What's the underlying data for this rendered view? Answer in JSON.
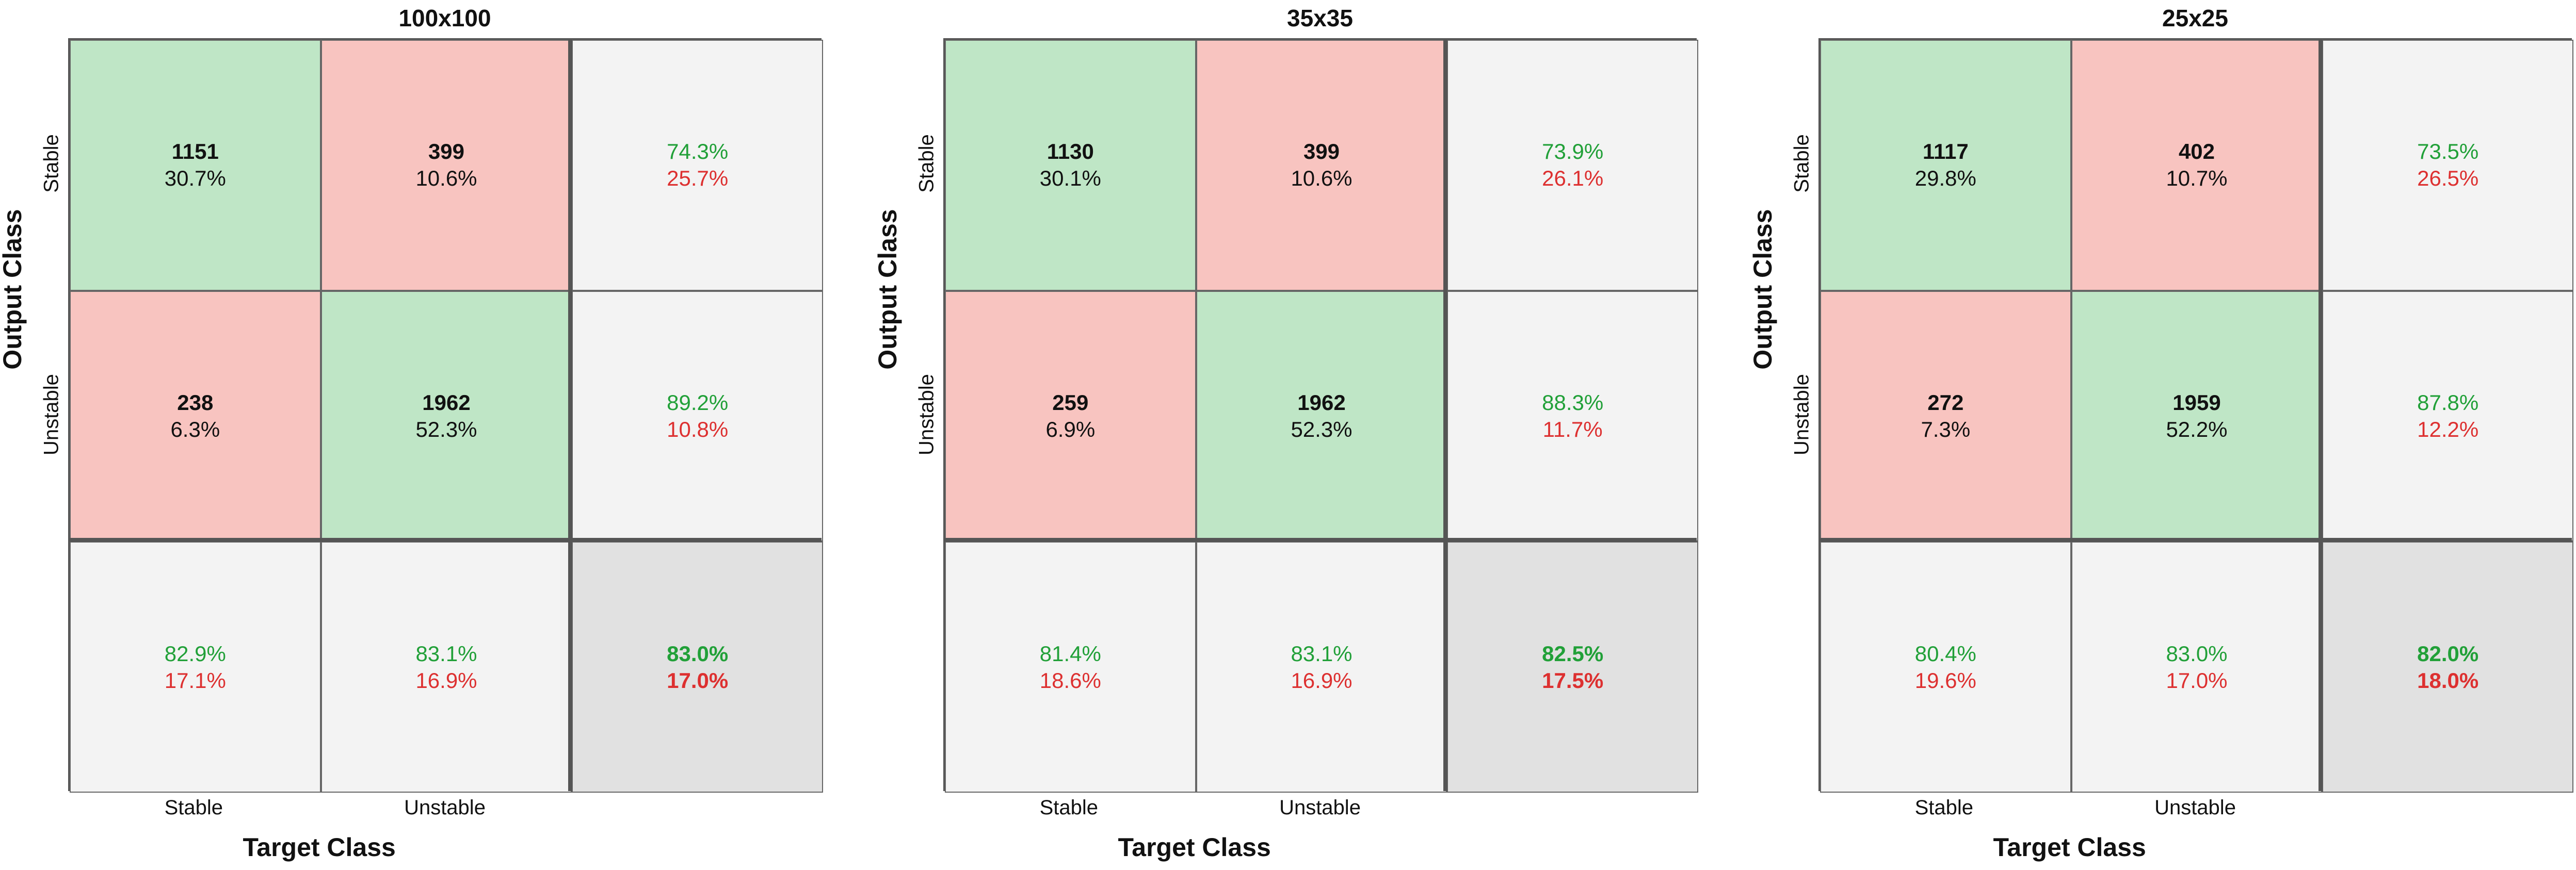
{
  "chart_data": [
    {
      "type": "table",
      "title": "100x100",
      "ylabel": "Output Class",
      "xlabel": "Target Class",
      "row_labels": [
        "Stable",
        "Unstable"
      ],
      "col_labels": [
        "Stable",
        "Unstable"
      ],
      "cells": [
        [
          {
            "count": "1151",
            "pct": "30.7%"
          },
          {
            "count": "399",
            "pct": "10.6%"
          }
        ],
        [
          {
            "count": "238",
            "pct": "6.3%"
          },
          {
            "count": "1962",
            "pct": "52.3%"
          }
        ]
      ],
      "row_summary": [
        [
          "74.3%",
          "25.7%"
        ],
        [
          "89.2%",
          "10.8%"
        ]
      ],
      "col_summary": [
        [
          "82.9%",
          "17.1%"
        ],
        [
          "83.1%",
          "16.9%"
        ]
      ],
      "overall": [
        "83.0%",
        "17.0%"
      ]
    },
    {
      "type": "table",
      "title": "35x35",
      "ylabel": "Output Class",
      "xlabel": "Target Class",
      "row_labels": [
        "Stable",
        "Unstable"
      ],
      "col_labels": [
        "Stable",
        "Unstable"
      ],
      "cells": [
        [
          {
            "count": "1130",
            "pct": "30.1%"
          },
          {
            "count": "399",
            "pct": "10.6%"
          }
        ],
        [
          {
            "count": "259",
            "pct": "6.9%"
          },
          {
            "count": "1962",
            "pct": "52.3%"
          }
        ]
      ],
      "row_summary": [
        [
          "73.9%",
          "26.1%"
        ],
        [
          "88.3%",
          "11.7%"
        ]
      ],
      "col_summary": [
        [
          "81.4%",
          "18.6%"
        ],
        [
          "83.1%",
          "16.9%"
        ]
      ],
      "overall": [
        "82.5%",
        "17.5%"
      ]
    },
    {
      "type": "table",
      "title": "25x25",
      "ylabel": "Output Class",
      "xlabel": "Target Class",
      "row_labels": [
        "Stable",
        "Unstable"
      ],
      "col_labels": [
        "Stable",
        "Unstable"
      ],
      "cells": [
        [
          {
            "count": "1117",
            "pct": "29.8%"
          },
          {
            "count": "402",
            "pct": "10.7%"
          }
        ],
        [
          {
            "count": "272",
            "pct": "7.3%"
          },
          {
            "count": "1959",
            "pct": "52.2%"
          }
        ]
      ],
      "row_summary": [
        [
          "73.5%",
          "26.5%"
        ],
        [
          "87.8%",
          "12.2%"
        ]
      ],
      "col_summary": [
        [
          "80.4%",
          "19.6%"
        ],
        [
          "83.0%",
          "17.0%"
        ]
      ],
      "overall": [
        "82.0%",
        "18.0%"
      ]
    }
  ],
  "colors": {
    "correct_fill": "#bfe6c6",
    "error_fill": "#f8c4c0",
    "summary_fill": "#f3f3f3",
    "overall_fill": "#e1e1e1",
    "good_text": "#21a038",
    "bad_text": "#dd3030"
  }
}
